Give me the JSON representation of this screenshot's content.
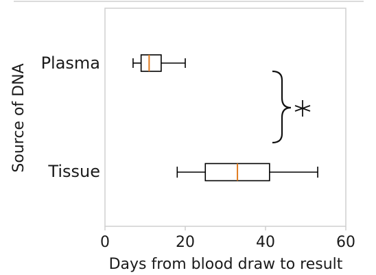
{
  "chart_data": {
    "type": "boxplot",
    "orientation": "horizontal",
    "title": "",
    "xlabel": "Days from blood draw to result",
    "ylabel": "Source of DNA",
    "xlim": [
      0,
      60
    ],
    "x_ticks": [
      0,
      20,
      40,
      60
    ],
    "grid": false,
    "categories": [
      "Plasma",
      "Tissue"
    ],
    "boxes": [
      {
        "category": "Plasma",
        "whisker_low": 7,
        "q1": 9,
        "median": 11,
        "q3": 14,
        "whisker_high": 20
      },
      {
        "category": "Tissue",
        "whisker_low": 18,
        "q1": 25,
        "median": 33,
        "q3": 41,
        "whisker_high": 53
      }
    ],
    "annotation": {
      "type": "significance-bracket",
      "text": "*",
      "between": [
        "Plasma",
        "Tissue"
      ]
    },
    "colors": {
      "median": "#e07b1f",
      "box": "#000000",
      "frame": "#cfcfcf"
    }
  }
}
